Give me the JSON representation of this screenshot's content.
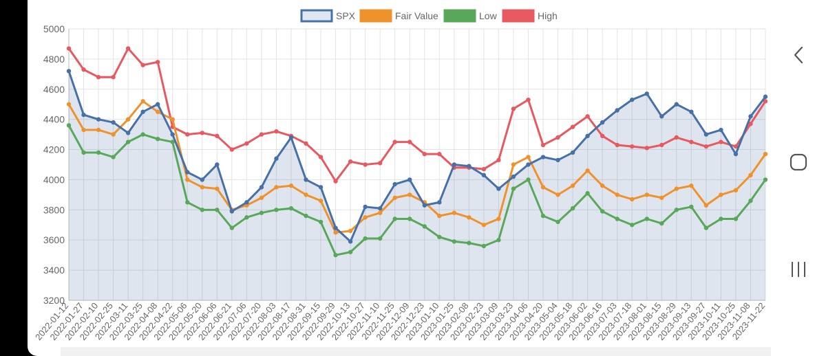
{
  "colors": {
    "spx": "#4670a8",
    "spx_fill": "rgba(70,112,168,0.18)",
    "fair": "#f0922b",
    "low": "#59a85a",
    "high": "#e8585f",
    "grid": "#e3e3e3"
  },
  "navbar": {
    "back_icon": "chevron-left-icon",
    "home_icon": "rounded-square-icon",
    "recents_icon": "three-bars-icon"
  },
  "chart_data": {
    "type": "line",
    "title": "",
    "xlabel": "",
    "ylabel": "",
    "ylim": [
      3200,
      5000
    ],
    "yticks": [
      3200,
      3400,
      3600,
      3800,
      4000,
      4200,
      4400,
      4600,
      4800,
      5000
    ],
    "grid": true,
    "legend_position": "top-center",
    "x_tick_labels": [
      "2022-01-12",
      "2022-01-27",
      "2022-02-10",
      "2022-02-25",
      "2022-03-11",
      "2022-03-25",
      "2022-04-08",
      "2022-04-22",
      "2022-05-06",
      "2022-05-20",
      "2022-06-06",
      "2022-06-21",
      "2022-07-06",
      "2022-07-20",
      "2022-08-03",
      "2022-08-17",
      "2022-08-31",
      "2022-09-15",
      "2022-09-29",
      "2022-10-13",
      "2022-10-27",
      "2022-11-10",
      "2022-11-25",
      "2022-12-09",
      "2022-12-23",
      "2023-01-10",
      "2023-01-25",
      "2023-02-08",
      "2023-02-23",
      "2023-03-09",
      "2023-03-23",
      "2023-04-06",
      "2023-04-20",
      "2023-05-04",
      "2023-05-18",
      "2023-06-02",
      "2023-06-16",
      "2023-07-03",
      "2023-07-18",
      "2023-08-01",
      "2023-08-15",
      "2023-08-29",
      "2023-09-13",
      "2023-09-27",
      "2023-10-11",
      "2023-10-25",
      "2023-11-08",
      "2023-11-22"
    ],
    "x": [
      "2022-01-12",
      "2022-01-27",
      "2022-02-10",
      "2022-02-25",
      "2022-03-11",
      "2022-03-25",
      "2022-04-08",
      "2022-04-22",
      "2022-05-06",
      "2022-05-20",
      "2022-06-06",
      "2022-06-21",
      "2022-07-06",
      "2022-07-20",
      "2022-08-03",
      "2022-08-17",
      "2022-08-31",
      "2022-09-15",
      "2022-09-29",
      "2022-10-13",
      "2022-10-27",
      "2022-11-10",
      "2022-11-25",
      "2022-12-09",
      "2022-12-23",
      "2023-01-10",
      "2023-01-25",
      "2023-02-08",
      "2023-02-23",
      "2023-03-09",
      "2023-03-23",
      "2023-04-06",
      "2023-04-20",
      "2023-05-04",
      "2023-05-18",
      "2023-06-02",
      "2023-06-16",
      "2023-07-03",
      "2023-07-18",
      "2023-08-01",
      "2023-08-15",
      "2023-08-29",
      "2023-09-13",
      "2023-09-27",
      "2023-10-11",
      "2023-10-25",
      "2023-11-08",
      "2023-11-22"
    ],
    "series": [
      {
        "name": "SPX",
        "values": [
          4720,
          4430,
          4400,
          4380,
          4310,
          4450,
          4500,
          4300,
          4050,
          4000,
          4100,
          3790,
          3850,
          3950,
          4140,
          4280,
          4000,
          3950,
          3680,
          3590,
          3820,
          3810,
          3970,
          4000,
          3830,
          3850,
          4100,
          4090,
          4030,
          3940,
          4020,
          4100,
          4150,
          4130,
          4180,
          4290,
          4380,
          4460,
          4530,
          4570,
          4420,
          4500,
          4450,
          4300,
          4330,
          4170,
          4420,
          4550
        ]
      },
      {
        "name": "Fair Value",
        "values": [
          4500,
          4330,
          4330,
          4300,
          4400,
          4520,
          4450,
          4400,
          4000,
          3950,
          3940,
          3800,
          3830,
          3880,
          3950,
          3960,
          3900,
          3860,
          3650,
          3660,
          3750,
          3780,
          3880,
          3900,
          3850,
          3760,
          3780,
          3750,
          3700,
          3740,
          4100,
          4150,
          3950,
          3900,
          3960,
          4060,
          3960,
          3900,
          3870,
          3900,
          3880,
          3940,
          3960,
          3830,
          3900,
          3930,
          4030,
          4170
        ]
      },
      {
        "name": "Low",
        "values": [
          4360,
          4180,
          4180,
          4150,
          4250,
          4300,
          4270,
          4250,
          3850,
          3800,
          3800,
          3680,
          3750,
          3780,
          3800,
          3810,
          3760,
          3720,
          3500,
          3520,
          3610,
          3610,
          3740,
          3740,
          3690,
          3620,
          3590,
          3580,
          3560,
          3600,
          3940,
          4000,
          3760,
          3720,
          3810,
          3910,
          3790,
          3740,
          3700,
          3740,
          3710,
          3800,
          3820,
          3680,
          3740,
          3740,
          3860,
          4000
        ]
      },
      {
        "name": "High",
        "values": [
          4870,
          4730,
          4680,
          4680,
          4870,
          4760,
          4780,
          4350,
          4300,
          4310,
          4290,
          4200,
          4240,
          4300,
          4320,
          4290,
          4240,
          4150,
          3990,
          4120,
          4100,
          4110,
          4250,
          4250,
          4170,
          4170,
          4080,
          4080,
          4070,
          4130,
          4470,
          4530,
          4230,
          4280,
          4350,
          4420,
          4290,
          4230,
          4220,
          4210,
          4230,
          4280,
          4250,
          4220,
          4250,
          4220,
          4370,
          4520
        ]
      }
    ]
  }
}
